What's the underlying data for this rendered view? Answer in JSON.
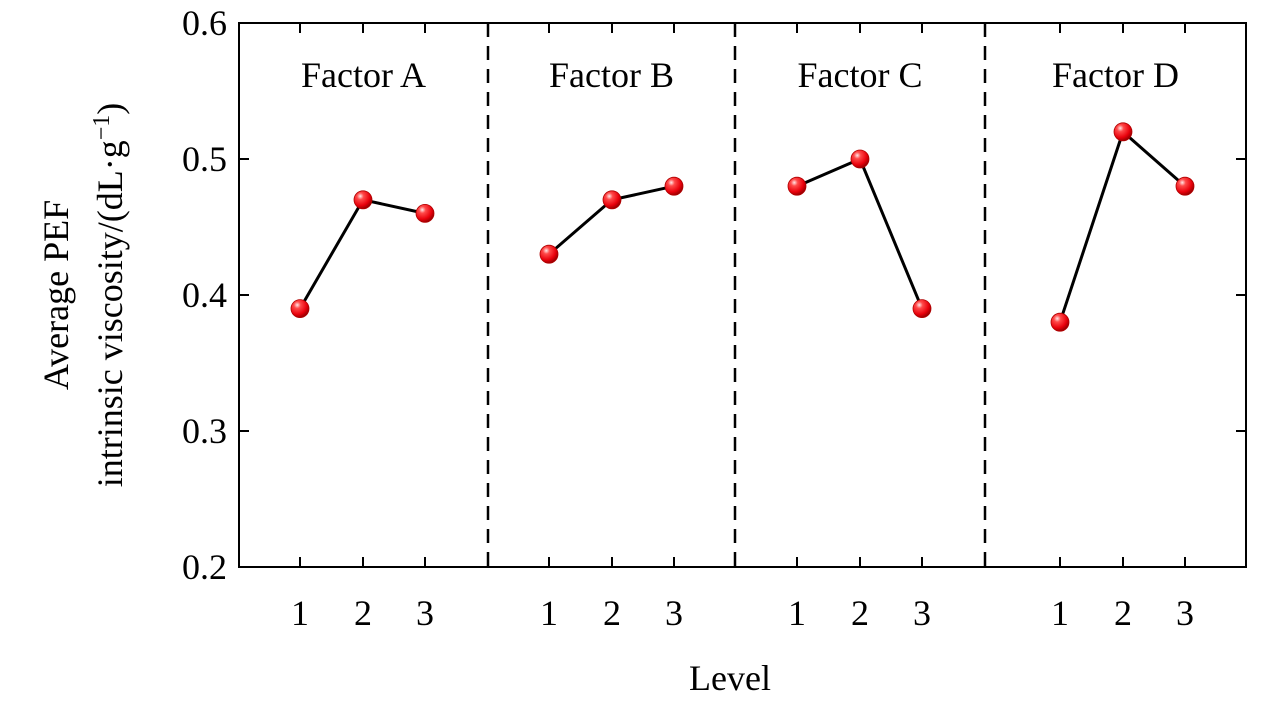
{
  "chart_data": {
    "type": "line",
    "xlabel": "Level",
    "ylabel_line1": "Average PEF",
    "ylabel_line2": "intrinsic viscosity/(dL·g",
    "ylabel_sup": "−1",
    "ylabel_close": ")",
    "ylim": [
      0.2,
      0.6
    ],
    "yticks": [
      "0.2",
      "0.3",
      "0.4",
      "0.5",
      "0.6"
    ],
    "ytick_values": [
      0.2,
      0.3,
      0.4,
      0.5,
      0.6
    ],
    "categories": [
      "1",
      "2",
      "3"
    ],
    "grid": false,
    "panels": [
      {
        "title": "Factor A",
        "values": [
          0.39,
          0.47,
          0.46
        ]
      },
      {
        "title": "Factor B",
        "values": [
          0.43,
          0.47,
          0.48
        ]
      },
      {
        "title": "Factor C",
        "values": [
          0.48,
          0.5,
          0.39
        ]
      },
      {
        "title": "Factor D",
        "values": [
          0.38,
          0.52,
          0.48
        ]
      }
    ],
    "colors": {
      "marker": "#e8000b",
      "marker_highlight": "#ffd0d0",
      "line": "#000000",
      "divider": "#000000"
    }
  }
}
